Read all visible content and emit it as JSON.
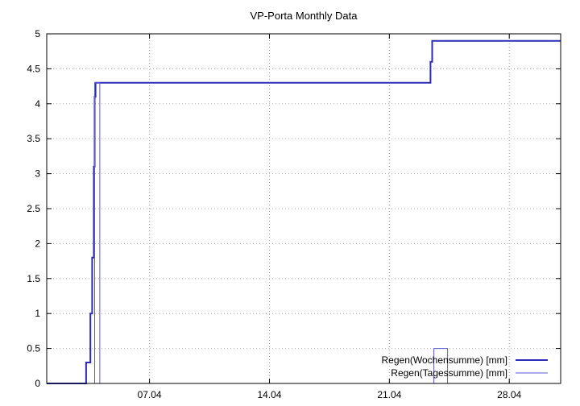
{
  "chart_data": {
    "type": "line",
    "title": "VP-Porta Monthly Data",
    "xlabel": "",
    "ylabel": "",
    "x_unit": "day of month (April)",
    "xlim": [
      1,
      31
    ],
    "ylim": [
      0,
      5
    ],
    "x_ticks": [
      {
        "value": 7,
        "label": "07.04"
      },
      {
        "value": 14,
        "label": "14.04"
      },
      {
        "value": 21,
        "label": "21.04"
      },
      {
        "value": 28,
        "label": "28.04"
      }
    ],
    "y_ticks": [
      {
        "value": 0,
        "label": "0"
      },
      {
        "value": 0.5,
        "label": "0.5"
      },
      {
        "value": 1,
        "label": "1"
      },
      {
        "value": 1.5,
        "label": "1.5"
      },
      {
        "value": 2,
        "label": "2"
      },
      {
        "value": 2.5,
        "label": "2.5"
      },
      {
        "value": 3,
        "label": "3"
      },
      {
        "value": 3.5,
        "label": "3.5"
      },
      {
        "value": 4,
        "label": "4"
      },
      {
        "value": 4.5,
        "label": "4.5"
      },
      {
        "value": 5,
        "label": "5"
      }
    ],
    "grid": true,
    "legend_position": "bottom-right",
    "series": [
      {
        "name": "Regen(Wochensumme) [mm]",
        "color": "#2b2bb8",
        "style": "bold-step",
        "points": [
          [
            1.0,
            0
          ],
          [
            3.3,
            0
          ],
          [
            3.3,
            0.3
          ],
          [
            3.55,
            0.3
          ],
          [
            3.55,
            1.0
          ],
          [
            3.65,
            1.0
          ],
          [
            3.65,
            1.8
          ],
          [
            3.75,
            1.8
          ],
          [
            3.75,
            3.1
          ],
          [
            3.8,
            3.1
          ],
          [
            3.8,
            4.1
          ],
          [
            3.85,
            4.1
          ],
          [
            3.85,
            4.3
          ],
          [
            23.4,
            4.3
          ],
          [
            23.4,
            4.6
          ],
          [
            23.5,
            4.6
          ],
          [
            23.5,
            4.9
          ],
          [
            31.0,
            4.9
          ]
        ]
      },
      {
        "name": "Regen(Tagessumme) [mm]",
        "color": "#5a5ad8",
        "style": "thin-step",
        "points": [
          [
            3.8,
            0
          ],
          [
            3.8,
            4.3
          ],
          [
            4.1,
            4.3
          ],
          [
            4.1,
            0
          ],
          [
            23.6,
            0
          ],
          [
            23.6,
            0.5
          ],
          [
            24.4,
            0.5
          ],
          [
            24.4,
            0
          ]
        ]
      }
    ]
  }
}
